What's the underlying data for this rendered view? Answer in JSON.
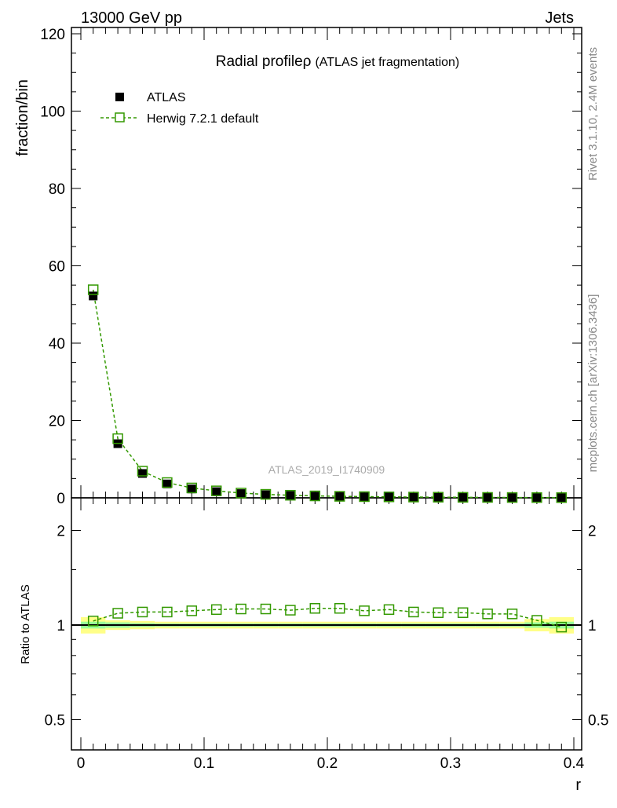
{
  "header": {
    "left": "13000 GeV pp",
    "right": "Jets"
  },
  "side": {
    "rivet": "Rivet 3.1.10,  2.4M events",
    "mcplots": "mcplots.cern.ch [arXiv:1306.3436]"
  },
  "colors": {
    "mc": "#339900",
    "band_green": "#99ff99",
    "band_yellow": "#ffff88",
    "data": "#000000"
  },
  "chart_data": [
    {
      "type": "scatter",
      "title": "Radial profile ρ (ATLAS jet fragmentation)",
      "title_main": "Radial profile",
      "title_rho": "ρ",
      "title_sub": "(ATLAS jet fragmentation)",
      "watermark": "ATLAS_2019_I1740909",
      "ylabel": "fraction/bin",
      "xlabel": "r",
      "xlim": [
        -0.01,
        0.405
      ],
      "ylim": [
        0,
        122
      ],
      "yticks": [
        0,
        20,
        40,
        60,
        80,
        100,
        120
      ],
      "ytick_labels": [
        "0",
        "20",
        "40",
        "60",
        "80",
        "100",
        "120"
      ],
      "legend": [
        "ATLAS",
        "Herwig 7.2.1 default"
      ],
      "legend_position": "top-left",
      "x": [
        0.01,
        0.03,
        0.05,
        0.07,
        0.09,
        0.11,
        0.13,
        0.15,
        0.17,
        0.19,
        0.21,
        0.23,
        0.25,
        0.27,
        0.29,
        0.31,
        0.33,
        0.35,
        0.37,
        0.39
      ],
      "series": [
        {
          "name": "ATLAS",
          "values": [
            52.2,
            14.0,
            6.3,
            3.6,
            2.3,
            1.6,
            1.1,
            0.8,
            0.6,
            0.45,
            0.35,
            0.28,
            0.22,
            0.18,
            0.15,
            0.12,
            0.1,
            0.08,
            0.07,
            0.06
          ]
        },
        {
          "name": "Herwig 7.2.1 default",
          "values": [
            53.8,
            15.3,
            6.9,
            3.95,
            2.55,
            1.8,
            1.23,
            0.9,
            0.67,
            0.5,
            0.39,
            0.31,
            0.25,
            0.2,
            0.165,
            0.13,
            0.11,
            0.088,
            0.073,
            0.059
          ]
        }
      ]
    },
    {
      "type": "line",
      "ylabel": "Ratio to ATLAS",
      "xlabel": "r",
      "ylim": [
        0.4,
        2.3
      ],
      "yscale": "log",
      "yticks": [
        0.5,
        1,
        2
      ],
      "ytick_labels": [
        "0.5",
        "1",
        "2"
      ],
      "xticks": [
        0,
        0.1,
        0.2,
        0.3,
        0.4
      ],
      "xtick_labels": [
        "0",
        "0.1",
        "0.2",
        "0.3",
        "0.4"
      ],
      "ratio": [
        1.03,
        1.09,
        1.1,
        1.1,
        1.11,
        1.12,
        1.125,
        1.125,
        1.115,
        1.13,
        1.13,
        1.11,
        1.12,
        1.1,
        1.095,
        1.095,
        1.085,
        1.085,
        1.035,
        0.985
      ],
      "band_green": [
        0.025,
        0.02,
        0.015,
        0.012,
        0.012,
        0.012,
        0.012,
        0.012,
        0.012,
        0.012,
        0.012,
        0.012,
        0.012,
        0.012,
        0.012,
        0.012,
        0.012,
        0.012,
        0.02,
        0.025
      ],
      "band_yellow": [
        0.06,
        0.035,
        0.03,
        0.025,
        0.025,
        0.025,
        0.025,
        0.025,
        0.025,
        0.025,
        0.025,
        0.025,
        0.025,
        0.025,
        0.025,
        0.025,
        0.025,
        0.025,
        0.045,
        0.06
      ]
    }
  ]
}
